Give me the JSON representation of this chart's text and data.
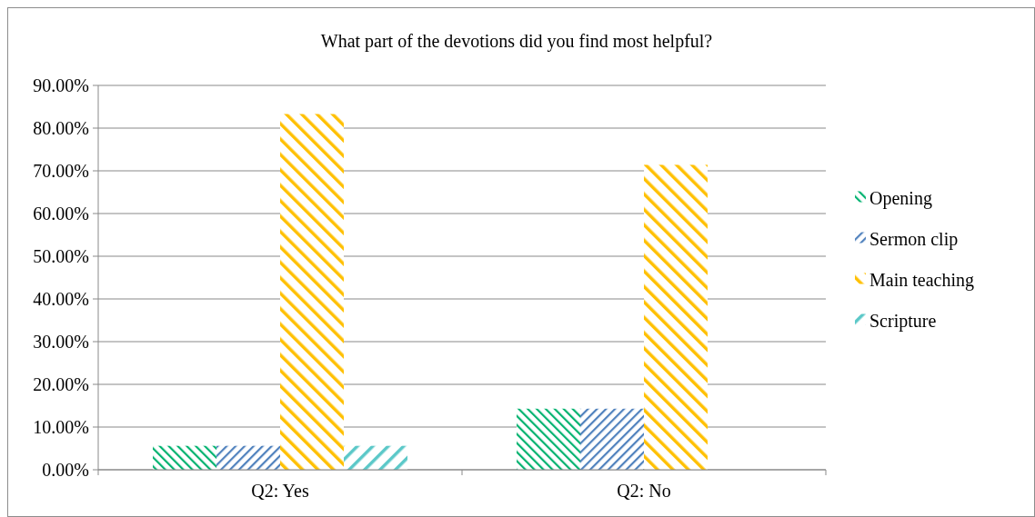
{
  "chart_data": {
    "type": "bar",
    "title": "What part of the devotions did you find most helpful?",
    "categories": [
      "Q2: Yes",
      "Q2: No"
    ],
    "series": [
      {
        "name": "Opening",
        "color": "#00b26f",
        "values": [
          5.6,
          14.3
        ]
      },
      {
        "name": "Sermon clip",
        "color": "#4f81bd",
        "values": [
          5.6,
          14.3
        ]
      },
      {
        "name": "Main teaching",
        "color": "#ffc000",
        "values": [
          83.3,
          71.4
        ]
      },
      {
        "name": "Scripture",
        "color": "#5bc8c8",
        "values": [
          5.6,
          null
        ]
      }
    ],
    "ylim": [
      0,
      90
    ],
    "yticks": [
      {
        "value": 0,
        "label": "0.00%"
      },
      {
        "value": 10,
        "label": "10.00%"
      },
      {
        "value": 20,
        "label": "20.00%"
      },
      {
        "value": 30,
        "label": "30.00%"
      },
      {
        "value": 40,
        "label": "40.00%"
      },
      {
        "value": 50,
        "label": "50.00%"
      },
      {
        "value": 60,
        "label": "60.00%"
      },
      {
        "value": 70,
        "label": "70.00%"
      },
      {
        "value": 80,
        "label": "80.00%"
      },
      {
        "value": 90,
        "label": "90.00%"
      }
    ],
    "grid": "y",
    "legend": "right"
  }
}
